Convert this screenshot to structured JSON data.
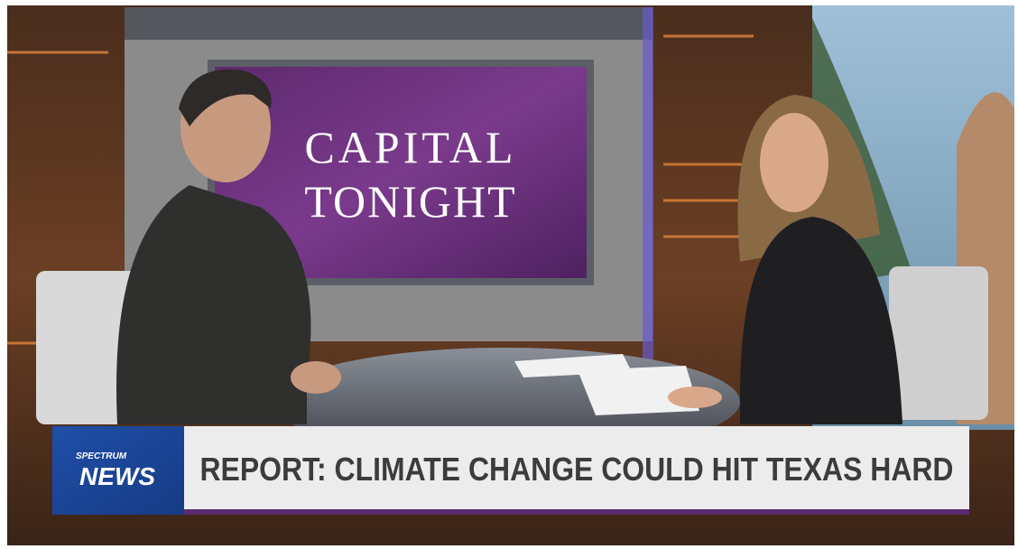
{
  "backdrop": {
    "line1": "CAPITAL",
    "line2": "TONIGHT"
  },
  "lower_third": {
    "brand": "SPECTRUM",
    "network": "NEWS",
    "headline": "REPORT: CLIMATE CHANGE COULD HIT TEXAS HARD"
  }
}
